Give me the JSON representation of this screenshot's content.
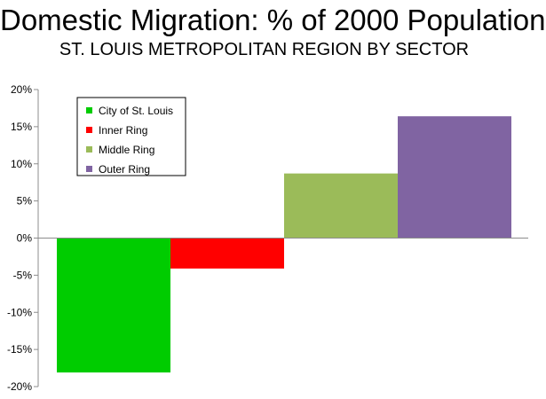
{
  "chart_data": {
    "type": "bar",
    "title": "Domestic Migration: % of 2000 Population",
    "subtitle": "ST. LOUIS METROPOLITAN REGION BY SECTOR",
    "xlabel": "",
    "ylabel": "",
    "ylim": [
      -20,
      20
    ],
    "yticks": [
      "20%",
      "15%",
      "10%",
      "5%",
      "0%",
      "-5%",
      "-10%",
      "-15%",
      "-20%"
    ],
    "grid": false,
    "legend_position": "top-left",
    "series": [
      {
        "name": "City of St. Louis",
        "value": -18.1,
        "color": "#00cc00"
      },
      {
        "name": "Inner Ring",
        "value": -4.1,
        "color": "#ff0000"
      },
      {
        "name": "Middle Ring",
        "value": 8.7,
        "color": "#9bbb59"
      },
      {
        "name": "Outer Ring",
        "value": 16.4,
        "color": "#8064a2"
      }
    ]
  }
}
